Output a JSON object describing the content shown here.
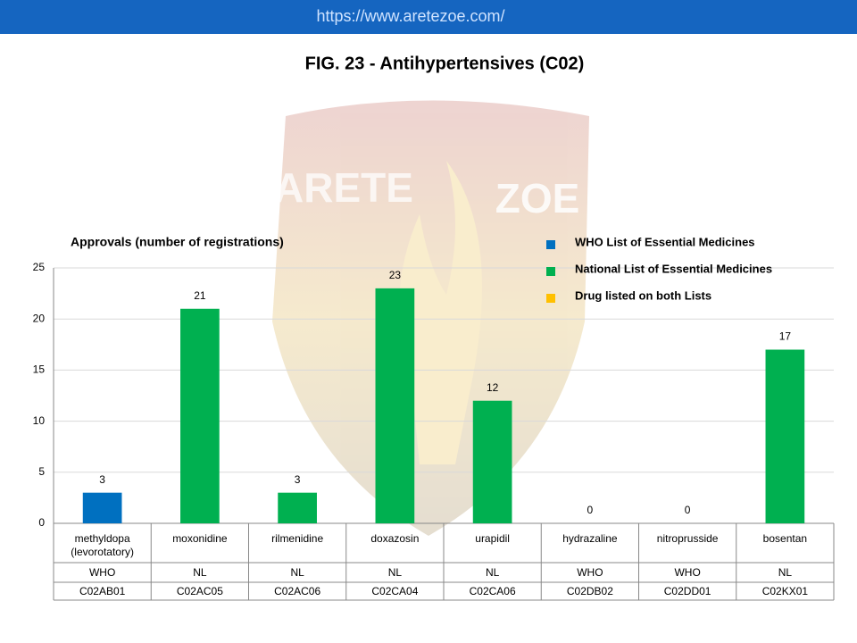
{
  "header": {
    "url": "https://www.aretezoe.com/"
  },
  "watermark": [
    "ARETE",
    "ZOE"
  ],
  "chart_data": {
    "type": "bar",
    "title": "FIG. 23 - Antihypertensives (C02)",
    "subtitle": "Approvals (number of registrations)",
    "categories": [
      "methyldopa (levorotatory)",
      "moxonidine",
      "rilmenidine",
      "doxazosin",
      "urapidil",
      "hydrazaline",
      "nitroprusside",
      "bosentan"
    ],
    "lists": [
      "WHO",
      "NL",
      "NL",
      "NL",
      "NL",
      "WHO",
      "WHO",
      "NL"
    ],
    "codes": [
      "C02AB01",
      "C02AC05",
      "C02AC06",
      "C02CA04",
      "C02CA06",
      "C02DB02",
      "C02DD01",
      "C02KX01"
    ],
    "values": [
      3,
      21,
      3,
      23,
      12,
      0,
      0,
      17
    ],
    "colors": [
      "#0070c0",
      "#00b050",
      "#00b050",
      "#00b050",
      "#00b050",
      "#0070c0",
      "#0070c0",
      "#00b050"
    ],
    "legend": [
      {
        "label": "WHO List of Essential Medicines",
        "color": "#0070c0"
      },
      {
        "label": "National List of Essential Medicines",
        "color": "#00b050"
      },
      {
        "label": "Drug listed on both Lists",
        "color": "#ffc000"
      }
    ],
    "ylim": [
      0,
      25
    ],
    "yticks": [
      0,
      5,
      10,
      15,
      20,
      25
    ],
    "grid": true
  }
}
